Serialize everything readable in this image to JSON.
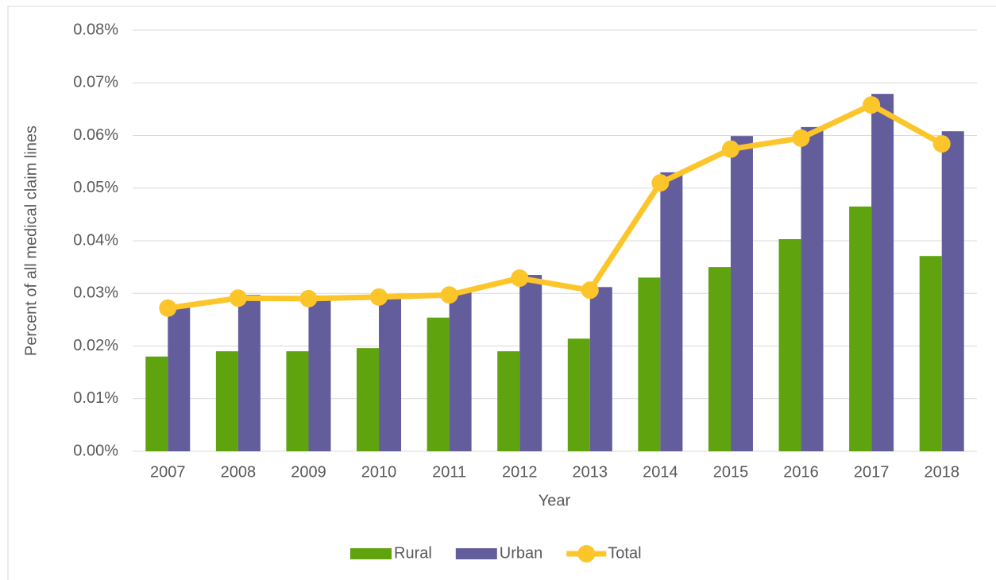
{
  "chart_data": {
    "type": "bar_line",
    "categories": [
      "2007",
      "2008",
      "2009",
      "2010",
      "2011",
      "2012",
      "2013",
      "2014",
      "2015",
      "2016",
      "2017",
      "2018"
    ],
    "series": [
      {
        "name": "Rural",
        "type": "bar",
        "color": "#5fa30f",
        "values": [
          0.018,
          0.019,
          0.019,
          0.0196,
          0.0254,
          0.019,
          0.0214,
          0.033,
          0.035,
          0.0403,
          0.0465,
          0.0371
        ]
      },
      {
        "name": "Urban",
        "type": "bar",
        "color": "#635d9c",
        "values": [
          0.0276,
          0.0297,
          0.0296,
          0.0296,
          0.0302,
          0.0335,
          0.0312,
          0.053,
          0.0599,
          0.0616,
          0.0679,
          0.0608
        ]
      },
      {
        "name": "Total",
        "type": "line",
        "color": "#fcc52a",
        "values": [
          0.0272,
          0.0291,
          0.029,
          0.0293,
          0.0297,
          0.0329,
          0.0306,
          0.051,
          0.0574,
          0.0595,
          0.0658,
          0.0584
        ]
      }
    ],
    "x_label": "Year",
    "y_label": "Percent of all medical claim lines",
    "ylim": [
      0,
      0.08
    ],
    "yticks": [
      {
        "value": 0,
        "label": "0.00%"
      },
      {
        "value": 0.01,
        "label": "0.01%"
      },
      {
        "value": 0.02,
        "label": "0.02%"
      },
      {
        "value": 0.03,
        "label": "0.03%"
      },
      {
        "value": 0.04,
        "label": "0.04%"
      },
      {
        "value": 0.05,
        "label": "0.05%"
      },
      {
        "value": 0.06,
        "label": "0.06%"
      },
      {
        "value": 0.07,
        "label": "0.07%"
      },
      {
        "value": 0.08,
        "label": "0.08%"
      }
    ],
    "grid": true,
    "legend": "bottom"
  }
}
